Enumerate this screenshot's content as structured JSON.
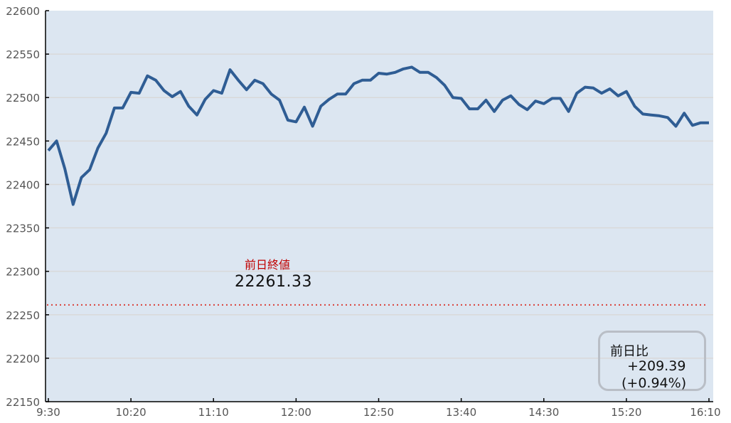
{
  "chart_data": {
    "type": "line",
    "title": "",
    "xlabel": "",
    "ylabel": "",
    "ylim": [
      22150,
      22600
    ],
    "yticks": [
      22150,
      22200,
      22250,
      22300,
      22350,
      22400,
      22450,
      22500,
      22550,
      22600
    ],
    "xticks": [
      "9:30",
      "10:20",
      "11:10",
      "12:00",
      "12:50",
      "13:40",
      "14:30",
      "15:20",
      "16:10"
    ],
    "x_start": "9:30",
    "x_end": "16:10",
    "x_step_minutes": 5,
    "grid": "horizontal",
    "colors": {
      "line": "#2f5d94",
      "background": "#dce6f1",
      "reference": "#d9413a",
      "grid": "#d9d9d9"
    },
    "series": [
      {
        "values": [
          22439,
          22450,
          22418,
          22377,
          22408,
          22417,
          22442,
          22459,
          22488,
          22488,
          22506,
          22505,
          22525,
          22520,
          22508,
          22501,
          22507,
          22490,
          22480,
          22498,
          22508,
          22505,
          22532,
          22520,
          22509,
          22520,
          22516,
          22504,
          22497,
          22474,
          22472,
          22489,
          22467,
          22490,
          22498,
          22504,
          22504,
          22516,
          22520,
          22520,
          22528,
          22527,
          22529,
          22533,
          22535,
          22529,
          22529,
          22523,
          22514,
          22500,
          22499,
          22487,
          22487,
          22497,
          22484,
          22497,
          22502,
          22492,
          22486,
          22496,
          22493,
          22499,
          22499,
          22484,
          22505,
          22512,
          22511,
          22505,
          22510,
          22502,
          22507,
          22490,
          22481,
          22480,
          22479,
          22477,
          22467,
          22482,
          22468,
          22471,
          22471
        ]
      }
    ],
    "reference_line": {
      "value": 22261.33,
      "label": "前日終値",
      "value_text": "22261.33"
    }
  },
  "change_box": {
    "title": "前日比",
    "change": "+209.39",
    "percent": "(+0.94%)"
  }
}
